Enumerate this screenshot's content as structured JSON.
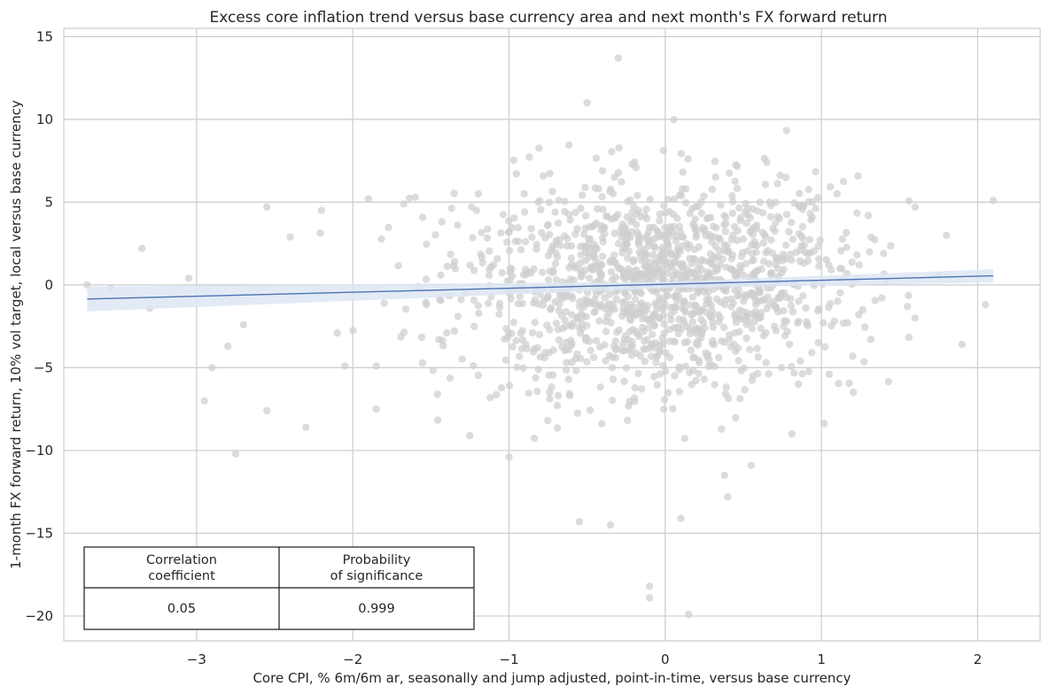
{
  "chart_data": {
    "type": "scatter",
    "title": "Excess core inflation trend versus base currency area and next month's FX forward return",
    "xlabel": "Core CPI, % 6m/6m ar, seasonally and jump adjusted, point-in-time, versus base currency",
    "ylabel": "1-month FX forward return, 10% vol target, local versus base currency",
    "xlim": [
      -3.85,
      2.4
    ],
    "ylim": [
      -21.5,
      15.5
    ],
    "x_ticks": [
      -3,
      -2,
      -1,
      0,
      1,
      2
    ],
    "x_tick_labels": [
      "−3",
      "−2",
      "−1",
      "0",
      "1",
      "2"
    ],
    "y_ticks": [
      -20,
      -15,
      -10,
      -5,
      0,
      5,
      10,
      15
    ],
    "y_tick_labels": [
      "−20",
      "−15",
      "−10",
      "−5",
      "0",
      "5",
      "10",
      "15"
    ],
    "grid": true,
    "point_color": "#cfcfcf",
    "line_color": "#4c72b0",
    "band_color": "#dde6f4",
    "regression": {
      "x": [
        -3.7,
        2.1
      ],
      "y": [
        -0.85,
        0.55
      ]
    },
    "confidence_band": {
      "x": [
        -3.7,
        0.0,
        2.1
      ],
      "lower": [
        -1.6,
        -0.2,
        0.15
      ],
      "upper": [
        -0.1,
        0.2,
        0.95
      ]
    },
    "points_notable": [
      {
        "x": -3.7,
        "y": 0.0
      },
      {
        "x": -3.55,
        "y": -0.2
      },
      {
        "x": -3.35,
        "y": 2.2
      },
      {
        "x": -3.3,
        "y": -1.4
      },
      {
        "x": -3.05,
        "y": 0.4
      },
      {
        "x": -2.95,
        "y": -7.0
      },
      {
        "x": -2.9,
        "y": -5.0
      },
      {
        "x": -2.8,
        "y": -3.7
      },
      {
        "x": -2.75,
        "y": -10.2
      },
      {
        "x": -2.7,
        "y": -2.4
      },
      {
        "x": -2.55,
        "y": 4.7
      },
      {
        "x": -2.55,
        "y": -7.6
      },
      {
        "x": -2.4,
        "y": 2.9
      },
      {
        "x": -2.3,
        "y": -8.6
      },
      {
        "x": -2.2,
        "y": 4.5
      },
      {
        "x": -2.1,
        "y": -2.9
      },
      {
        "x": -2.05,
        "y": -4.9
      },
      {
        "x": -1.9,
        "y": 5.2
      },
      {
        "x": -1.85,
        "y": -7.5
      },
      {
        "x": -1.85,
        "y": -4.9
      },
      {
        "x": -1.6,
        "y": 5.3
      },
      {
        "x": -1.45,
        "y": -3.3
      },
      {
        "x": -1.25,
        "y": -9.1
      },
      {
        "x": -1.0,
        "y": -10.4
      },
      {
        "x": -0.5,
        "y": 11.0
      },
      {
        "x": -0.3,
        "y": 13.7
      },
      {
        "x": -0.35,
        "y": -14.5
      },
      {
        "x": -0.55,
        "y": -14.3
      },
      {
        "x": -0.1,
        "y": -18.9
      },
      {
        "x": -0.1,
        "y": -18.2
      },
      {
        "x": 0.15,
        "y": -19.9
      },
      {
        "x": 0.1,
        "y": -14.1
      },
      {
        "x": 0.4,
        "y": -12.8
      },
      {
        "x": 0.38,
        "y": -11.5
      },
      {
        "x": 0.55,
        "y": -10.9
      },
      {
        "x": 1.05,
        "y": -5.4
      },
      {
        "x": 1.1,
        "y": 5.5
      },
      {
        "x": 1.2,
        "y": -4.3
      },
      {
        "x": 1.3,
        "y": 4.2
      },
      {
        "x": 1.6,
        "y": 4.7
      },
      {
        "x": 1.55,
        "y": -1.3
      },
      {
        "x": 1.6,
        "y": -2.0
      },
      {
        "x": 1.75,
        "y": 0.6
      },
      {
        "x": 1.8,
        "y": 3.0
      },
      {
        "x": 1.9,
        "y": -3.6
      },
      {
        "x": 2.05,
        "y": -1.2
      },
      {
        "x": 2.1,
        "y": 5.1
      }
    ],
    "points_cloud": {
      "count": 1400,
      "x_mean": -0.05,
      "x_sd": 0.62,
      "y_mean": 0.0,
      "y_sd": 3.1
    },
    "stats_table": {
      "headers": [
        "Correlation\ncoefficient",
        "Probability\nof significance"
      ],
      "header_lines": [
        [
          "Correlation",
          "coefficient"
        ],
        [
          "Probability",
          "of significance"
        ]
      ],
      "values": [
        "0.05",
        "0.999"
      ],
      "placement": "lower-left"
    }
  }
}
